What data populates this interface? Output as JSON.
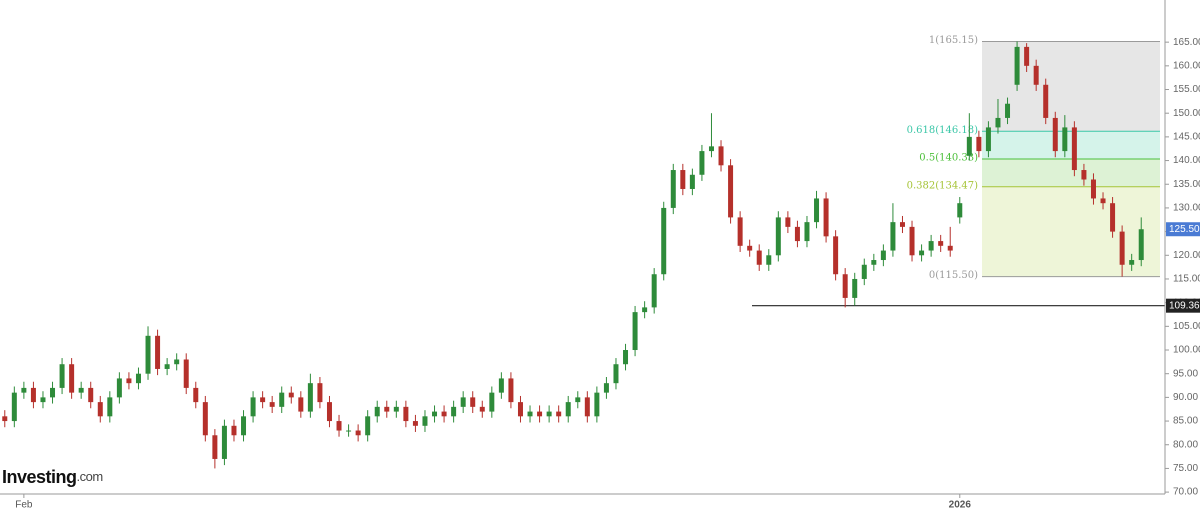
{
  "chart_data": {
    "type": "candlestick",
    "logo": "Investing",
    "logo_suffix": ".com",
    "categories": [
      null,
      null,
      "Feb",
      null,
      null,
      null,
      null,
      null,
      null,
      null,
      null,
      null,
      null,
      null,
      null,
      null,
      null,
      null,
      null,
      null,
      null,
      null,
      null,
      null,
      null,
      null,
      null,
      null,
      null,
      null,
      null,
      null,
      null,
      null,
      null,
      null,
      null,
      null,
      null,
      null,
      null,
      null,
      null,
      null,
      null,
      null,
      null,
      null,
      null,
      null,
      null,
      null,
      null,
      null,
      null,
      null,
      null,
      null,
      null,
      null,
      null,
      null,
      null,
      null,
      null,
      null,
      null,
      null,
      null,
      null,
      null,
      null,
      null,
      null,
      null,
      null,
      null,
      null,
      null,
      null,
      null,
      null,
      null,
      null,
      null,
      null,
      null,
      null,
      null,
      null,
      null,
      null,
      null,
      null,
      null,
      null,
      null,
      null,
      null,
      null,
      "2026",
      null,
      null,
      null,
      null,
      null,
      null,
      null,
      null,
      null,
      null,
      null,
      null,
      null,
      null,
      null,
      null,
      null,
      null,
      null
    ],
    "open": [
      86,
      85,
      91,
      92,
      89,
      90,
      92,
      97,
      91,
      92,
      89,
      86,
      90,
      94,
      93,
      95,
      103,
      96,
      97,
      98,
      92,
      89,
      82,
      77,
      84,
      82,
      86,
      90,
      89,
      88,
      91,
      90,
      87,
      93,
      89,
      85,
      83,
      83,
      82,
      86,
      88,
      87,
      88,
      85,
      84,
      86,
      87,
      86,
      88,
      90,
      88,
      87,
      91,
      94,
      89,
      86,
      87,
      86,
      87,
      86,
      89,
      90,
      86,
      91,
      93,
      97,
      100,
      108,
      109,
      116,
      130,
      138,
      134,
      137,
      142,
      143,
      139,
      128,
      122,
      121,
      118,
      120,
      128,
      126,
      123,
      127,
      132,
      124,
      116,
      111,
      115,
      118,
      119,
      121,
      127,
      126,
      120,
      121,
      123,
      122,
      128,
      141,
      145,
      142,
      147,
      149,
      156,
      164,
      160,
      156,
      149,
      142,
      147,
      138,
      136,
      132,
      131,
      125,
      118,
      119
    ],
    "high": [
      87.3,
      92.3,
      93.3,
      93.3,
      91.3,
      93.3,
      98.3,
      98.3,
      93.3,
      93.3,
      90.3,
      91.3,
      95.3,
      95.3,
      96.3,
      105,
      104.3,
      98.3,
      99.3,
      99.3,
      93.3,
      90.3,
      83.3,
      85.3,
      85.3,
      87.3,
      91.3,
      91.3,
      90.3,
      92.3,
      92.3,
      91.3,
      95,
      94.3,
      90.3,
      86.3,
      84.3,
      84.3,
      87.3,
      89.3,
      89.3,
      89.3,
      89.3,
      86.3,
      87.3,
      88.3,
      88.3,
      89.3,
      91.3,
      91.3,
      89.3,
      92.3,
      95.3,
      95.3,
      90.3,
      88.3,
      88.3,
      88.3,
      88.3,
      90.3,
      91.3,
      91.3,
      92.3,
      94.3,
      98.3,
      101.3,
      109.3,
      110.3,
      117.3,
      131.3,
      139.3,
      139.3,
      138.3,
      143.3,
      150,
      144.3,
      140.3,
      129.3,
      123.3,
      122.3,
      121.3,
      129.3,
      129.3,
      127.3,
      128.3,
      133.6,
      133.3,
      125.3,
      117.3,
      116.3,
      119.3,
      120.3,
      122.3,
      131,
      128.3,
      127.3,
      122.3,
      124.3,
      124.3,
      126,
      132.3,
      150,
      146.3,
      148.3,
      153,
      153.3,
      165.15,
      164.8,
      161.3,
      157.3,
      150.3,
      149.6,
      148.3,
      139.3,
      137.3,
      133.3,
      132.3,
      126.3,
      120.3,
      128
    ],
    "low": [
      83.7,
      83.7,
      89.7,
      87.7,
      87.7,
      88.7,
      90.7,
      89.7,
      89.7,
      87.7,
      84.7,
      84.7,
      88.7,
      91.7,
      91.7,
      93.7,
      94.7,
      94.7,
      95.7,
      90.7,
      87.7,
      80.7,
      75,
      75.7,
      80.7,
      80.7,
      84.7,
      87.7,
      86.7,
      86.7,
      88.7,
      85.7,
      85.7,
      87.7,
      83.7,
      81.7,
      81.7,
      80.7,
      80.7,
      84.7,
      85.7,
      85.7,
      83.7,
      82.7,
      82.7,
      84.7,
      84.7,
      84.7,
      86.7,
      86.7,
      85.7,
      85.7,
      89.7,
      87.7,
      84.7,
      84.7,
      84.7,
      84.7,
      84.7,
      84.7,
      87.7,
      84.7,
      84.7,
      89.7,
      91.7,
      95.7,
      98.7,
      106.7,
      107.7,
      114.7,
      128.7,
      132.7,
      132.7,
      135.7,
      140.7,
      137.7,
      126.7,
      120.7,
      119.7,
      116.7,
      116.7,
      118.7,
      124.7,
      121.7,
      121.7,
      125.7,
      122.7,
      114.7,
      109,
      109.4,
      113.7,
      116.7,
      117.7,
      119.7,
      124.7,
      118.7,
      118.7,
      119.7,
      120.7,
      119.7,
      126.7,
      140,
      140.7,
      140.7,
      145.7,
      147.7,
      154.7,
      158.7,
      154.7,
      147.7,
      140.7,
      140.7,
      136.7,
      134.7,
      130.7,
      129.7,
      123.7,
      115.5,
      116.7,
      117.7
    ],
    "close": [
      85,
      91,
      92,
      89,
      90,
      92,
      97,
      91,
      92,
      89,
      86,
      90,
      94,
      93,
      95,
      103,
      96,
      97,
      98,
      92,
      89,
      82,
      77,
      84,
      82,
      86,
      90,
      89,
      88,
      91,
      90,
      87,
      93,
      89,
      85,
      83,
      83,
      82,
      86,
      88,
      87,
      88,
      85,
      84,
      86,
      87,
      86,
      88,
      90,
      88,
      87,
      91,
      94,
      89,
      86,
      87,
      86,
      87,
      86,
      89,
      90,
      86,
      91,
      93,
      97,
      100,
      108,
      109,
      116,
      130,
      138,
      134,
      137,
      142,
      143,
      139,
      128,
      122,
      121,
      118,
      120,
      128,
      126,
      123,
      127,
      132,
      124,
      116,
      111,
      115,
      118,
      119,
      121,
      127,
      126,
      120,
      121,
      123,
      122,
      121,
      131,
      145,
      142,
      147,
      149,
      152,
      164,
      160,
      156,
      149,
      142,
      147,
      138,
      136,
      132,
      131,
      125,
      118,
      119,
      125.5
    ],
    "up_color": "#2e8b3a",
    "down_color": "#b5302b",
    "ylim": [
      69.6,
      173.9
    ],
    "yticks": [
      {
        "value": 70,
        "label": "70.00"
      },
      {
        "value": 75,
        "label": "75.00"
      },
      {
        "value": 80,
        "label": "80.00"
      },
      {
        "value": 85,
        "label": "85.00"
      },
      {
        "value": 90,
        "label": "90.00"
      },
      {
        "value": 95,
        "label": "95.00"
      },
      {
        "value": 100,
        "label": "100.00"
      },
      {
        "value": 105,
        "label": "105.00"
      },
      {
        "value": 110,
        "label": "110.00"
      },
      {
        "value": 115,
        "label": "115.00"
      },
      {
        "value": 120,
        "label": "120.00"
      },
      {
        "value": 125,
        "label": "125.00"
      },
      {
        "value": 130,
        "label": "130.00"
      },
      {
        "value": 135,
        "label": "135.00"
      },
      {
        "value": 140,
        "label": "140.00"
      },
      {
        "value": 145,
        "label": "145.00"
      },
      {
        "value": 150,
        "label": "150.00"
      },
      {
        "value": 155,
        "label": "155.00"
      },
      {
        "value": 160,
        "label": "160.00"
      },
      {
        "value": 165,
        "label": "165.00"
      }
    ],
    "fibonacci": {
      "levels": [
        {
          "value": 165.15,
          "label": "1(165.15)",
          "color": "#9a9a9a",
          "fill": "#e6e6e6"
        },
        {
          "value": 146.18,
          "label": "0.618(146.18)",
          "color": "#3cc7a8",
          "fill": "#d5f3ea"
        },
        {
          "value": 140.33,
          "label": "0.5(140.33)",
          "color": "#4cbf3a",
          "fill": "#ddf2d5"
        },
        {
          "value": 134.47,
          "label": "0.382(134.47)",
          "color": "#a6c437",
          "fill": "#eef5d8"
        },
        {
          "value": 115.5,
          "label": "0(115.50)",
          "color": "#9a9a9a"
        }
      ]
    },
    "support": {
      "value": 109.36,
      "label": "109.36",
      "color": "#222222"
    },
    "last_price": {
      "value": 125.5,
      "label": "125.50",
      "color": "#4a7bd4"
    }
  }
}
